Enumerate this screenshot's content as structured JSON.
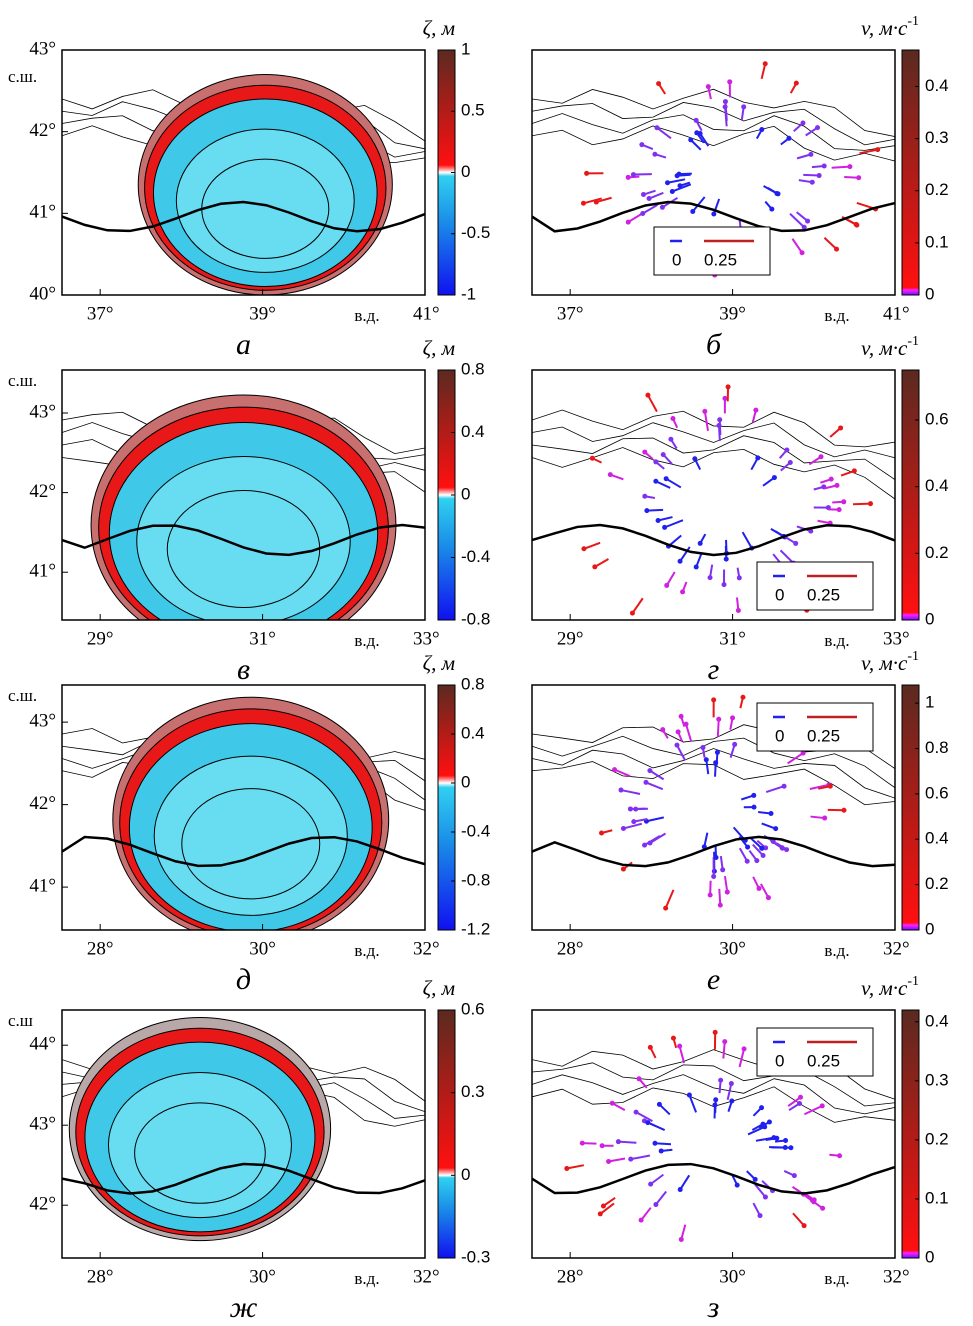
{
  "panels": [
    {
      "caption": "а",
      "xlim": [
        36.53,
        41
      ],
      "ylim": [
        40,
        43
      ],
      "xticks": [
        {
          "value": 37,
          "label": "37°"
        },
        {
          "value": 39,
          "label": "39°"
        },
        {
          "value": 41,
          "label": "41°"
        }
      ],
      "yticks": [
        {
          "value": 40,
          "label": "40°"
        },
        {
          "value": 41,
          "label": "41°"
        },
        {
          "value": 42,
          "label": "42°"
        },
        {
          "value": 43,
          "label": "43°"
        }
      ],
      "lon_label": "в.д.",
      "lat_label": "с.ш.",
      "colorbar": {
        "label": "ζ, м",
        "lim": [
          -1,
          1
        ],
        "ticks": [
          -1,
          -0.5,
          0,
          0.5,
          1
        ]
      }
    },
    {
      "caption": "б",
      "xlim": [
        36.53,
        41
      ],
      "ylim": [
        40,
        43
      ],
      "xticks": [
        {
          "value": 37,
          "label": "37°"
        },
        {
          "value": 39,
          "label": "39°"
        },
        {
          "value": 41,
          "label": "41°"
        }
      ],
      "lon_label": "в.д.",
      "colorbar": {
        "label": "v, м·с",
        "label_sup": "-1",
        "lim": [
          0,
          0.47
        ],
        "ticks": [
          0,
          0.1,
          0.2,
          0.3,
          0.4
        ]
      },
      "arrow_legend": [
        0,
        0.25
      ]
    },
    {
      "caption": "в",
      "xlim": [
        28.53,
        33
      ],
      "ylim": [
        40.4,
        43.54
      ],
      "xticks": [
        {
          "value": 29,
          "label": "29°"
        },
        {
          "value": 31,
          "label": "31°"
        },
        {
          "value": 33,
          "label": "33°"
        }
      ],
      "yticks": [
        {
          "value": 41,
          "label": "41°"
        },
        {
          "value": 42,
          "label": "42°"
        },
        {
          "value": 43,
          "label": "43°"
        }
      ],
      "lon_label": "в.д.",
      "lat_label": "с.ш.",
      "colorbar": {
        "label": "ζ, м",
        "lim": [
          -0.8,
          0.8
        ],
        "ticks": [
          -0.8,
          -0.4,
          0,
          0.4,
          0.8
        ]
      }
    },
    {
      "caption": "г",
      "xlim": [
        28.53,
        33
      ],
      "ylim": [
        40.4,
        43.54
      ],
      "xticks": [
        {
          "value": 29,
          "label": "29°"
        },
        {
          "value": 31,
          "label": "31°"
        },
        {
          "value": 33,
          "label": "33°"
        }
      ],
      "lon_label": "в.д.",
      "colorbar": {
        "label": "v, м·с",
        "label_sup": "-1",
        "lim": [
          0,
          0.75
        ],
        "ticks": [
          0,
          0.2,
          0.4,
          0.6
        ]
      },
      "arrow_legend": [
        0,
        0.25
      ]
    },
    {
      "caption": "д",
      "xlim": [
        27.53,
        32
      ],
      "ylim": [
        40.48,
        43.45
      ],
      "xticks": [
        {
          "value": 28,
          "label": "28°"
        },
        {
          "value": 30,
          "label": "30°"
        },
        {
          "value": 32,
          "label": "32°"
        }
      ],
      "yticks": [
        {
          "value": 41,
          "label": "41°"
        },
        {
          "value": 42,
          "label": "42°"
        },
        {
          "value": 43,
          "label": "43°"
        }
      ],
      "lon_label": "в.д.",
      "lat_label": "с.ш.",
      "colorbar": {
        "label": "ζ, м",
        "lim": [
          -1.2,
          0.8
        ],
        "ticks": [
          -1.2,
          -0.8,
          -0.4,
          0,
          0.4,
          0.8
        ]
      }
    },
    {
      "caption": "е",
      "xlim": [
        27.53,
        32
      ],
      "ylim": [
        40.48,
        43.45
      ],
      "xticks": [
        {
          "value": 28,
          "label": "28°"
        },
        {
          "value": 30,
          "label": "30°"
        },
        {
          "value": 32,
          "label": "32°"
        }
      ],
      "lon_label": "в.д.",
      "colorbar": {
        "label": "v, м·с",
        "label_sup": "-1",
        "lim": [
          0,
          1.08
        ],
        "ticks": [
          0,
          0.2,
          0.4,
          0.6,
          0.8,
          1
        ]
      },
      "arrow_legend": [
        0,
        0.25
      ]
    },
    {
      "caption": "ж",
      "xlim": [
        27.53,
        32
      ],
      "ylim": [
        41.34,
        44.44
      ],
      "xticks": [
        {
          "value": 28,
          "label": "28°"
        },
        {
          "value": 30,
          "label": "30°"
        },
        {
          "value": 32,
          "label": "32°"
        }
      ],
      "yticks": [
        {
          "value": 42,
          "label": "42°"
        },
        {
          "value": 43,
          "label": "43°"
        },
        {
          "value": 44,
          "label": "44°"
        }
      ],
      "lon_label": "в.д.",
      "lat_label": "с.ш",
      "colorbar": {
        "label": "ζ, м",
        "lim": [
          -0.3,
          0.6
        ],
        "ticks": [
          -0.3,
          0,
          0.3,
          0.6
        ]
      }
    },
    {
      "caption": "з",
      "xlim": [
        27.53,
        32
      ],
      "ylim": [
        41.34,
        44.44
      ],
      "xticks": [
        {
          "value": 28,
          "label": "28°"
        },
        {
          "value": 30,
          "label": "30°"
        },
        {
          "value": 32,
          "label": "32°"
        }
      ],
      "lon_label": "в.д.",
      "colorbar": {
        "label": "v, м·с",
        "label_sup": "-1",
        "lim": [
          0,
          0.42
        ],
        "ticks": [
          0,
          0.1,
          0.2,
          0.3,
          0.4
        ]
      },
      "arrow_legend": [
        0,
        0.25
      ]
    }
  ]
}
